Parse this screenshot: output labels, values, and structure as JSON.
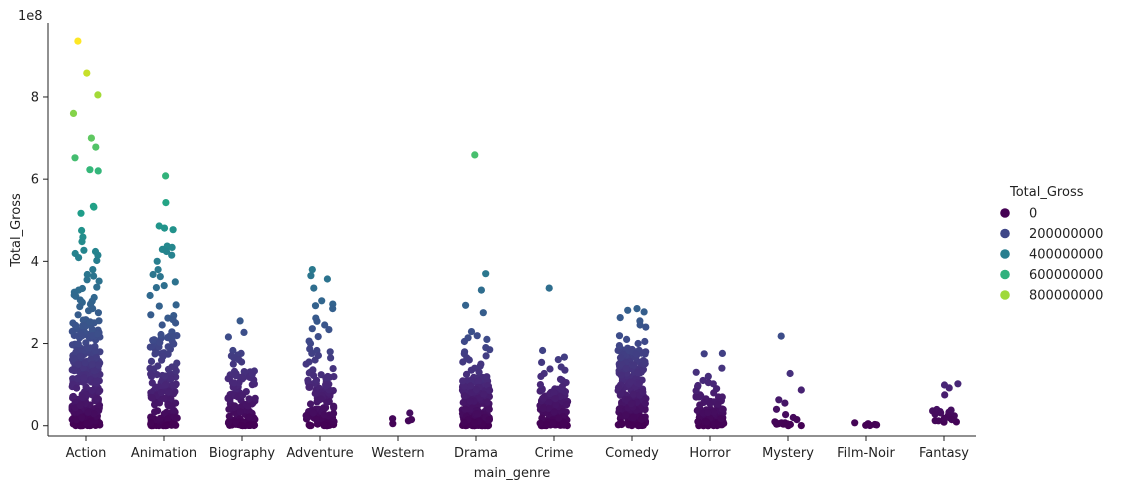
{
  "chart_data": {
    "type": "scatter",
    "subtype": "categorical strip plot",
    "xlabel": "main_genre",
    "ylabel": "Total_Gross",
    "y_offset_label": "1e8",
    "categories": [
      "Action",
      "Animation",
      "Biography",
      "Adventure",
      "Western",
      "Drama",
      "Crime",
      "Comedy",
      "Horror",
      "Mystery",
      "Film-Noir",
      "Fantasy"
    ],
    "yticks": [
      0,
      200000000,
      400000000,
      600000000,
      800000000
    ],
    "ytick_labels": [
      "0",
      "2",
      "4",
      "6",
      "8"
    ],
    "ylim": [
      -25000000,
      980000000
    ],
    "grid": false,
    "legend": {
      "title": "Total_Gross",
      "placement": "right",
      "entries": [
        {
          "label": "0",
          "value": 0
        },
        {
          "label": "200000000",
          "value": 200000000
        },
        {
          "label": "400000000",
          "value": 400000000
        },
        {
          "label": "600000000",
          "value": 600000000
        },
        {
          "label": "800000000",
          "value": 800000000
        }
      ]
    },
    "colormap": "viridis",
    "color_range": [
      0,
      936000000
    ],
    "series": [
      {
        "category": "Action",
        "dense_max": 260000000,
        "dense_count": 320,
        "outliers": [
          936000000,
          858000000,
          805000000,
          760000000,
          700000000,
          678000000,
          652000000,
          623000000,
          620000000,
          534000000,
          532000000,
          517000000,
          475000000,
          459000000,
          448000000,
          427000000,
          424000000,
          419000000,
          415000000,
          409000000,
          402000000,
          380000000,
          368000000,
          364000000,
          355000000,
          352000000,
          337000000,
          334000000,
          330000000,
          325000000,
          318000000,
          315000000,
          312000000,
          306000000,
          303000000,
          300000000,
          296000000,
          290000000,
          285000000,
          280000000,
          275000000,
          270000000
        ]
      },
      {
        "category": "Animation",
        "dense_max": 230000000,
        "dense_count": 160,
        "outliers": [
          608000000,
          543000000,
          486000000,
          481000000,
          477000000,
          437000000,
          434000000,
          429000000,
          424000000,
          415000000,
          400000000,
          380000000,
          368000000,
          363000000,
          350000000,
          341000000,
          336000000,
          317000000,
          294000000,
          291000000,
          270000000,
          268000000,
          262000000,
          258000000,
          250000000,
          245000000
        ]
      },
      {
        "category": "Biography",
        "dense_max": 140000000,
        "dense_count": 120,
        "outliers": [
          255000000,
          227000000,
          216000000,
          183000000,
          176000000,
          172000000,
          170000000,
          165000000,
          161000000,
          155000000,
          150000000
        ]
      },
      {
        "category": "Adventure",
        "dense_max": 140000000,
        "dense_count": 110,
        "outliers": [
          380000000,
          365000000,
          357000000,
          335000000,
          304000000,
          296000000,
          292000000,
          285000000,
          262000000,
          254000000,
          245000000,
          236000000,
          234000000,
          217000000,
          206000000,
          200000000,
          187000000,
          183000000,
          180000000,
          176000000,
          171000000,
          165000000,
          160000000,
          155000000,
          150000000
        ]
      },
      {
        "category": "Western",
        "dense_max": 0,
        "dense_count": 0,
        "outliers": [
          31000000,
          17000000,
          15000000,
          12000000,
          5000000
        ]
      },
      {
        "category": "Drama",
        "dense_max": 120000000,
        "dense_count": 200,
        "outliers": [
          659000000,
          370000000,
          330000000,
          293000000,
          275000000,
          229000000,
          219000000,
          214000000,
          210000000,
          205000000,
          190000000,
          185000000,
          180000000,
          175000000,
          170000000,
          165000000,
          160000000,
          155000000,
          150000000,
          145000000,
          140000000,
          135000000,
          130000000,
          125000000
        ]
      },
      {
        "category": "Crime",
        "dense_max": 90000000,
        "dense_count": 120,
        "outliers": [
          335000000,
          183000000,
          167000000,
          161000000,
          154000000,
          143000000,
          138000000,
          135000000,
          127000000,
          120000000,
          113000000,
          110000000,
          105000000,
          100000000,
          95000000
        ]
      },
      {
        "category": "Comedy",
        "dense_max": 190000000,
        "dense_count": 220,
        "outliers": [
          285000000,
          281000000,
          277000000,
          263000000,
          255000000,
          245000000,
          240000000,
          219000000,
          210000000,
          205000000,
          200000000,
          195000000
        ]
      },
      {
        "category": "Horror",
        "dense_max": 75000000,
        "dense_count": 90,
        "outliers": [
          176000000,
          175000000,
          140000000,
          130000000,
          120000000,
          110000000,
          105000000,
          102000000,
          98000000,
          95000000,
          90000000,
          85000000,
          80000000
        ]
      },
      {
        "category": "Mystery",
        "dense_max": 12000000,
        "dense_count": 12,
        "outliers": [
          218000000,
          127000000,
          87000000,
          63000000,
          55000000,
          40000000,
          27000000,
          20000000,
          15000000
        ]
      },
      {
        "category": "Film-Noir",
        "dense_max": 0,
        "dense_count": 0,
        "outliers": [
          7000000,
          5000000,
          3000000,
          2000000,
          1000000,
          1000000,
          500000
        ]
      },
      {
        "category": "Fantasy",
        "dense_max": 40000000,
        "dense_count": 8,
        "outliers": [
          102000000,
          99000000,
          92000000,
          75000000,
          38000000,
          36000000,
          33000000,
          28000000,
          25000000,
          20000000,
          18000000,
          15000000
        ]
      }
    ]
  }
}
